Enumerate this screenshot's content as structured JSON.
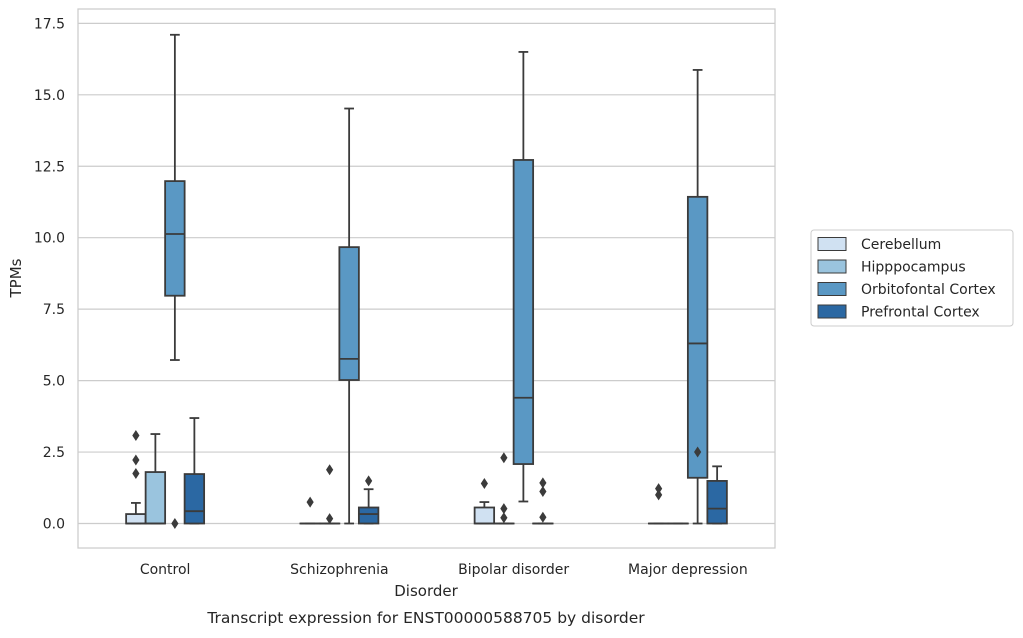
{
  "chart_data": {
    "type": "box",
    "title": "",
    "caption": "Transcript expression for ENST00000588705 by disorder",
    "xlabel": "Disorder",
    "ylabel": "TPMs",
    "ylim": [
      -0.8,
      18.0
    ],
    "yticks": [
      "0.0",
      "2.5",
      "5.0",
      "7.5",
      "10.0",
      "12.5",
      "15.0",
      "17.5"
    ],
    "ytick_values": [
      0,
      2.5,
      5,
      7.5,
      10,
      12.5,
      15,
      17.5
    ],
    "grid": "horizontal",
    "legend_position": "right",
    "categories": [
      "Control",
      "Schizophrenia",
      "Bipolar disorder",
      "Major depression"
    ],
    "series": [
      {
        "name": "Cerebellum",
        "color": "#d0e1f2",
        "boxes": [
          {
            "q1": 0,
            "median": 0,
            "q3": 0.33,
            "whisker_low": 0,
            "whisker_high": 0.72,
            "outliers": [
              1.75,
              2.22,
              3.08
            ]
          },
          {
            "q1": 0,
            "median": 0,
            "q3": 0,
            "whisker_low": 0,
            "whisker_high": 0,
            "outliers": [
              0.75
            ]
          },
          {
            "q1": 0,
            "median": 0,
            "q3": 0.56,
            "whisker_low": 0,
            "whisker_high": 0.75,
            "outliers": [
              1.4
            ]
          },
          {
            "q1": 0,
            "median": 0,
            "q3": 0,
            "whisker_low": 0,
            "whisker_high": 0,
            "outliers": [
              1.0,
              1.22
            ]
          }
        ]
      },
      {
        "name": "Hipppocampus",
        "color": "#9ac4de",
        "boxes": [
          {
            "q1": 0,
            "median": 0,
            "q3": 1.8,
            "whisker_low": 0,
            "whisker_high": 3.13,
            "outliers": []
          },
          {
            "q1": 0,
            "median": 0,
            "q3": 0,
            "whisker_low": 0,
            "whisker_high": 0,
            "outliers": [
              0.17,
              1.88
            ]
          },
          {
            "q1": 0,
            "median": 0,
            "q3": 0,
            "whisker_low": 0,
            "whisker_high": 0,
            "outliers": [
              0.2,
              0.52,
              2.3
            ]
          },
          {
            "q1": 0,
            "median": 0,
            "q3": 0,
            "whisker_low": 0,
            "whisker_high": 0,
            "outliers": []
          }
        ]
      },
      {
        "name": "Orbitofontal Cortex",
        "color": "#5a98c4",
        "boxes": [
          {
            "q1": 7.97,
            "median": 10.13,
            "q3": 11.98,
            "whisker_low": 5.72,
            "whisker_high": 17.1,
            "outliers": [
              0
            ]
          },
          {
            "q1": 5.02,
            "median": 5.76,
            "q3": 9.67,
            "whisker_low": 0,
            "whisker_high": 14.52,
            "outliers": []
          },
          {
            "q1": 2.08,
            "median": 4.4,
            "q3": 12.72,
            "whisker_low": 0.77,
            "whisker_high": 16.5,
            "outliers": []
          },
          {
            "q1": 1.6,
            "median": 6.3,
            "q3": 11.43,
            "whisker_low": 0,
            "whisker_high": 15.87,
            "outliers": [
              2.5
            ]
          }
        ]
      },
      {
        "name": "Prefrontal Cortex",
        "color": "#2b68a3",
        "boxes": [
          {
            "q1": 0,
            "median": 0.43,
            "q3": 1.73,
            "whisker_low": 0,
            "whisker_high": 3.69,
            "outliers": []
          },
          {
            "q1": 0,
            "median": 0.33,
            "q3": 0.56,
            "whisker_low": 0,
            "whisker_high": 1.2,
            "outliers": [
              1.49
            ]
          },
          {
            "q1": 0,
            "median": 0,
            "q3": 0,
            "whisker_low": 0,
            "whisker_high": 0,
            "outliers": [
              0.22,
              1.12,
              1.42
            ]
          },
          {
            "q1": 0,
            "median": 0.52,
            "q3": 1.49,
            "whisker_low": 0,
            "whisker_high": 2.0,
            "outliers": []
          }
        ]
      }
    ]
  }
}
